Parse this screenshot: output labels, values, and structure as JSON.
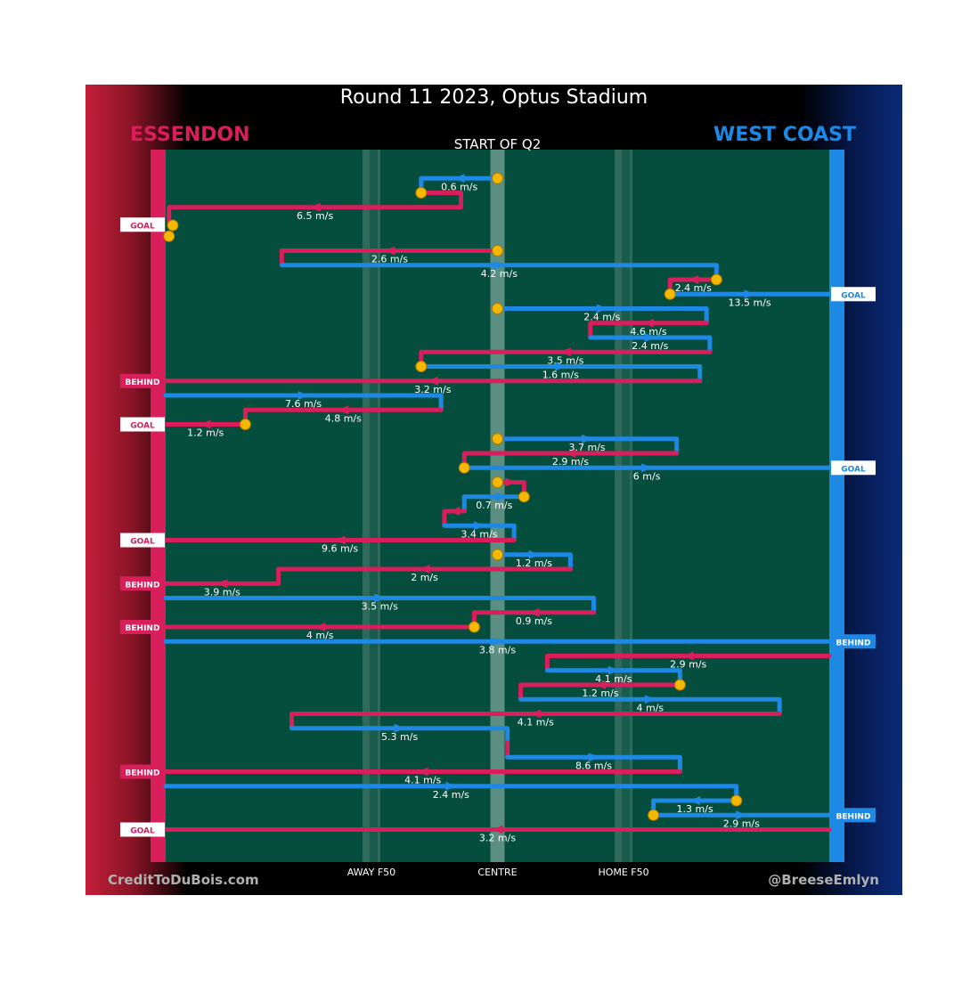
{
  "page": {
    "title": "Round 11 2023, Optus Stadium",
    "team_left": "ESSENDON",
    "team_right": "WEST COAST",
    "credit_left": "CreditToDuBois.com",
    "credit_right": "@BreeseEmlyn"
  },
  "colors": {
    "essendon": "#d81e5b",
    "west_coast": "#1e88e5",
    "field": "#054d3c",
    "marker": "#f5b800"
  },
  "chart_data": {
    "type": "line",
    "subtitle": "START OF Q2",
    "x_axis": {
      "range": [
        0,
        100
      ],
      "ticks": [
        {
          "x": 31,
          "label": "AWAY F50"
        },
        {
          "x": 50,
          "label": "CENTRE"
        },
        {
          "x": 69,
          "label": "HOME F50"
        }
      ]
    },
    "chains": [
      {
        "team": "wc",
        "path": [
          [
            50,
            1
          ],
          [
            38.5,
            1
          ],
          [
            38.5,
            2
          ]
        ],
        "start": 1,
        "label": "0.6 m/s"
      },
      {
        "team": "ess",
        "path": [
          [
            38.5,
            2
          ],
          [
            44.5,
            2
          ],
          [
            44.5,
            3
          ],
          [
            0.5,
            3
          ],
          [
            0.5,
            4
          ]
        ],
        "start": 1,
        "label": "6.5 m/s"
      },
      {
        "team": "ess",
        "path": [
          [
            0.5,
            5
          ],
          [
            0.5,
            5.2
          ]
        ],
        "start": 1
      },
      {
        "team": "ess",
        "path": [
          [
            50,
            6
          ],
          [
            17.5,
            6
          ],
          [
            17.5,
            7
          ]
        ],
        "start": 1,
        "label": "2.6 m/s"
      },
      {
        "team": "wc",
        "path": [
          [
            17.5,
            7
          ],
          [
            83,
            7
          ],
          [
            83,
            8
          ]
        ],
        "start": 0,
        "label": "4.2 m/s"
      },
      {
        "team": "ess",
        "path": [
          [
            83,
            8
          ],
          [
            76,
            8
          ],
          [
            76,
            9
          ]
        ],
        "start": 1,
        "label": "2.4 m/s"
      },
      {
        "team": "wc",
        "path": [
          [
            76,
            9
          ],
          [
            100,
            9
          ]
        ],
        "start": 1,
        "label": "13.5 m/s",
        "outcome": "GOAL"
      },
      {
        "team": "wc",
        "path": [
          [
            50,
            10
          ],
          [
            81.5,
            10
          ],
          [
            81.5,
            11
          ]
        ],
        "start": 1,
        "label": "2.4 m/s"
      },
      {
        "team": "ess",
        "path": [
          [
            81.5,
            11
          ],
          [
            64,
            11
          ],
          [
            64,
            12
          ]
        ],
        "start": 0,
        "label": "4.6 m/s"
      },
      {
        "team": "wc",
        "path": [
          [
            64,
            12
          ],
          [
            82,
            12
          ],
          [
            82,
            13
          ]
        ],
        "start": 0,
        "label": "2.4 m/s"
      },
      {
        "team": "ess",
        "path": [
          [
            82,
            13
          ],
          [
            38.5,
            13
          ],
          [
            38.5,
            14
          ]
        ],
        "start": 0,
        "label": "3.5 m/s"
      },
      {
        "team": "wc",
        "path": [
          [
            38.5,
            14
          ],
          [
            80.5,
            14
          ],
          [
            80.5,
            15
          ]
        ],
        "start": 1,
        "label": "1.6 m/s"
      },
      {
        "team": "ess",
        "path": [
          [
            80.5,
            15
          ],
          [
            0,
            15
          ]
        ],
        "start": 0,
        "label": "3.2 m/s",
        "outcome": "BEHIND"
      },
      {
        "team": "wc",
        "path": [
          [
            0,
            16
          ],
          [
            41.5,
            16
          ],
          [
            41.5,
            17
          ]
        ],
        "start": 0,
        "label": "7.6 m/s"
      },
      {
        "team": "ess",
        "path": [
          [
            41.5,
            17
          ],
          [
            12,
            17
          ],
          [
            12,
            18
          ]
        ],
        "start": 0,
        "label": "4.8 m/s"
      },
      {
        "team": "ess",
        "path": [
          [
            12,
            18
          ],
          [
            0,
            18
          ]
        ],
        "start": 1,
        "label": "1.2 m/s",
        "outcome": "GOAL"
      },
      {
        "team": "wc",
        "path": [
          [
            50,
            19
          ],
          [
            77,
            19
          ],
          [
            77,
            20
          ]
        ],
        "start": 1,
        "label": "3.7 m/s"
      },
      {
        "team": "ess",
        "path": [
          [
            77,
            20
          ],
          [
            45,
            20
          ],
          [
            45,
            21
          ]
        ],
        "start": 0,
        "label": "2.9 m/s"
      },
      {
        "team": "wc",
        "path": [
          [
            45,
            21
          ],
          [
            100,
            21
          ]
        ],
        "start": 1,
        "label": "6 m/s",
        "outcome": "GOAL"
      },
      {
        "team": "ess",
        "path": [
          [
            50,
            22
          ],
          [
            54,
            22
          ],
          [
            54,
            23
          ]
        ],
        "start": 1
      },
      {
        "team": "wc",
        "path": [
          [
            54,
            23
          ],
          [
            45,
            23
          ],
          [
            45,
            24
          ]
        ],
        "start": 1,
        "label": "0.7 m/s"
      },
      {
        "team": "ess",
        "path": [
          [
            45,
            24
          ],
          [
            42,
            24
          ],
          [
            42,
            25
          ]
        ],
        "start": 0
      },
      {
        "team": "wc",
        "path": [
          [
            42,
            25
          ],
          [
            52.5,
            25
          ],
          [
            52.5,
            26
          ]
        ],
        "start": 0,
        "label": "3.4 m/s"
      },
      {
        "team": "ess",
        "path": [
          [
            52.5,
            26
          ],
          [
            0,
            26
          ]
        ],
        "start": 0,
        "label": "9.6 m/s",
        "outcome": "GOAL"
      },
      {
        "team": "wc",
        "path": [
          [
            50,
            27
          ],
          [
            61,
            27
          ],
          [
            61,
            28
          ]
        ],
        "start": 1,
        "label": "1.2 m/s"
      },
      {
        "team": "ess",
        "path": [
          [
            61,
            28
          ],
          [
            17,
            28
          ],
          [
            17,
            29
          ]
        ],
        "start": 0,
        "label": "2 m/s"
      },
      {
        "team": "ess",
        "path": [
          [
            17,
            29
          ],
          [
            0,
            29
          ]
        ],
        "start": 0,
        "label": "3.9 m/s",
        "outcome": "BEHIND"
      },
      {
        "team": "wc",
        "path": [
          [
            0,
            30
          ],
          [
            64.5,
            30
          ],
          [
            64.5,
            31
          ]
        ],
        "start": 0,
        "label": "3.5 m/s"
      },
      {
        "team": "ess",
        "path": [
          [
            64.5,
            31
          ],
          [
            46.5,
            31
          ],
          [
            46.5,
            32
          ]
        ],
        "start": 0,
        "label": "0.9 m/s"
      },
      {
        "team": "ess",
        "path": [
          [
            46.5,
            32
          ],
          [
            0,
            32
          ]
        ],
        "start": 1,
        "label": "4 m/s",
        "outcome": "BEHIND"
      },
      {
        "team": "wc",
        "path": [
          [
            0,
            33
          ],
          [
            100,
            33
          ]
        ],
        "start": 0,
        "label": "3.8 m/s",
        "outcome": "BEHIND"
      },
      {
        "team": "ess",
        "path": [
          [
            100,
            34
          ],
          [
            57.5,
            34
          ],
          [
            57.5,
            35
          ]
        ],
        "start": 0,
        "label": "2.9 m/s"
      },
      {
        "team": "wc",
        "path": [
          [
            57.5,
            35
          ],
          [
            77.5,
            35
          ],
          [
            77.5,
            36
          ]
        ],
        "start": 0,
        "label": "4.1 m/s"
      },
      {
        "team": "ess",
        "path": [
          [
            77.5,
            36
          ],
          [
            53.5,
            36
          ],
          [
            53.5,
            37
          ]
        ],
        "start": 1,
        "label": "1.2 m/s"
      },
      {
        "team": "wc",
        "path": [
          [
            53.5,
            37
          ],
          [
            92.5,
            37
          ],
          [
            92.5,
            38
          ]
        ],
        "start": 0,
        "label": "4 m/s"
      },
      {
        "team": "ess",
        "path": [
          [
            92.5,
            38
          ],
          [
            19,
            38
          ],
          [
            19,
            39
          ]
        ],
        "start": 0,
        "label": "4.1 m/s"
      },
      {
        "team": "wc",
        "path": [
          [
            19,
            39
          ],
          [
            51.5,
            39
          ],
          [
            51.5,
            40
          ]
        ],
        "start": 0,
        "label": "5.3 m/s"
      },
      {
        "team": "ess",
        "path": [
          [
            51.5,
            40
          ],
          [
            51.5,
            41
          ]
        ],
        "start": 0
      },
      {
        "team": "wc",
        "path": [
          [
            51.5,
            41
          ],
          [
            77.5,
            41
          ],
          [
            77.5,
            42
          ]
        ],
        "start": 0,
        "label": "8.6 m/s"
      },
      {
        "team": "ess",
        "path": [
          [
            77.5,
            42
          ],
          [
            0,
            42
          ]
        ],
        "start": 0,
        "label": "4.1 m/s",
        "outcome": "BEHIND"
      },
      {
        "team": "wc",
        "path": [
          [
            0,
            43
          ],
          [
            86,
            43
          ],
          [
            86,
            44
          ]
        ],
        "start": 0,
        "label": "2.4 m/s"
      },
      {
        "team": "wc",
        "path": [
          [
            86,
            44
          ],
          [
            73.5,
            44
          ],
          [
            73.5,
            45
          ]
        ],
        "start": 1,
        "label": "1.3 m/s"
      },
      {
        "team": "wc",
        "path": [
          [
            73.5,
            45
          ],
          [
            100,
            45
          ]
        ],
        "start": 1,
        "label": "2.9 m/s",
        "outcome": "BEHIND"
      },
      {
        "team": "ess",
        "path": [
          [
            100,
            46
          ],
          [
            0,
            46
          ]
        ],
        "start": 0,
        "label": "3.2 m/s",
        "outcome": "GOAL"
      }
    ],
    "extra_outcomes": [
      {
        "team": "ess",
        "row": 4,
        "outcome": "GOAL"
      }
    ]
  }
}
